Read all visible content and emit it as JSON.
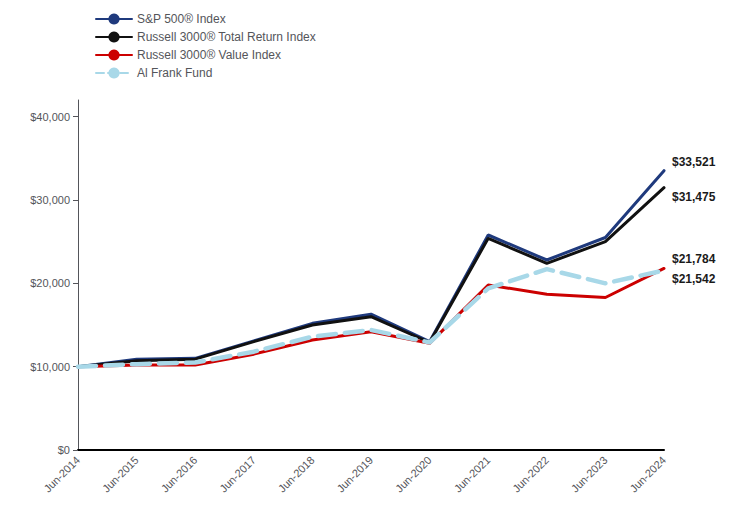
{
  "chart_data": {
    "type": "line",
    "categories": [
      "Jun-2014",
      "Jun-2015",
      "Jun-2016",
      "Jun-2017",
      "Jun-2018",
      "Jun-2019",
      "Jun-2020",
      "Jun-2021",
      "Jun-2022",
      "Jun-2023",
      "Jun-2024"
    ],
    "series": [
      {
        "name": "S&P 500® Index",
        "color": "#1f3a7d",
        "line_style": "solid",
        "values": [
          10000,
          10900,
          11000,
          13100,
          15200,
          16300,
          13000,
          25800,
          22800,
          25500,
          33521
        ]
      },
      {
        "name": "Russell 3000® Total Return Index",
        "color": "#111111",
        "line_style": "solid",
        "values": [
          10000,
          10700,
          10900,
          13000,
          15000,
          16000,
          12900,
          25400,
          22400,
          25000,
          31475
        ]
      },
      {
        "name": "Russell 3000® Value Index",
        "color": "#cc0000",
        "line_style": "solid",
        "values": [
          10000,
          10200,
          10200,
          11500,
          13200,
          14200,
          12800,
          19800,
          18700,
          18300,
          21784
        ]
      },
      {
        "name": "Al Frank Fund",
        "color": "#a8d8e8",
        "line_style": "dashed",
        "values": [
          10000,
          10300,
          10500,
          11800,
          13600,
          14400,
          12900,
          19400,
          21700,
          20000,
          21542
        ]
      }
    ],
    "annotations": [
      {
        "text": "$33,521",
        "x": "Jun-2024",
        "y": 33521
      },
      {
        "text": "$31,475",
        "x": "Jun-2024",
        "y": 31475
      },
      {
        "text": "$21,784",
        "x": "Jun-2024",
        "y": 21784
      },
      {
        "text": "$21,542",
        "x": "Jun-2024",
        "y": 21542
      }
    ],
    "ylim": [
      0,
      42000
    ],
    "yticks": [
      {
        "value": 0,
        "label": "$0"
      },
      {
        "value": 10000,
        "label": "$10,000"
      },
      {
        "value": 20000,
        "label": "$20,000"
      },
      {
        "value": 30000,
        "label": "$30,000"
      },
      {
        "value": 40000,
        "label": "$40,000"
      }
    ],
    "grid": false,
    "legend": "upper left"
  }
}
